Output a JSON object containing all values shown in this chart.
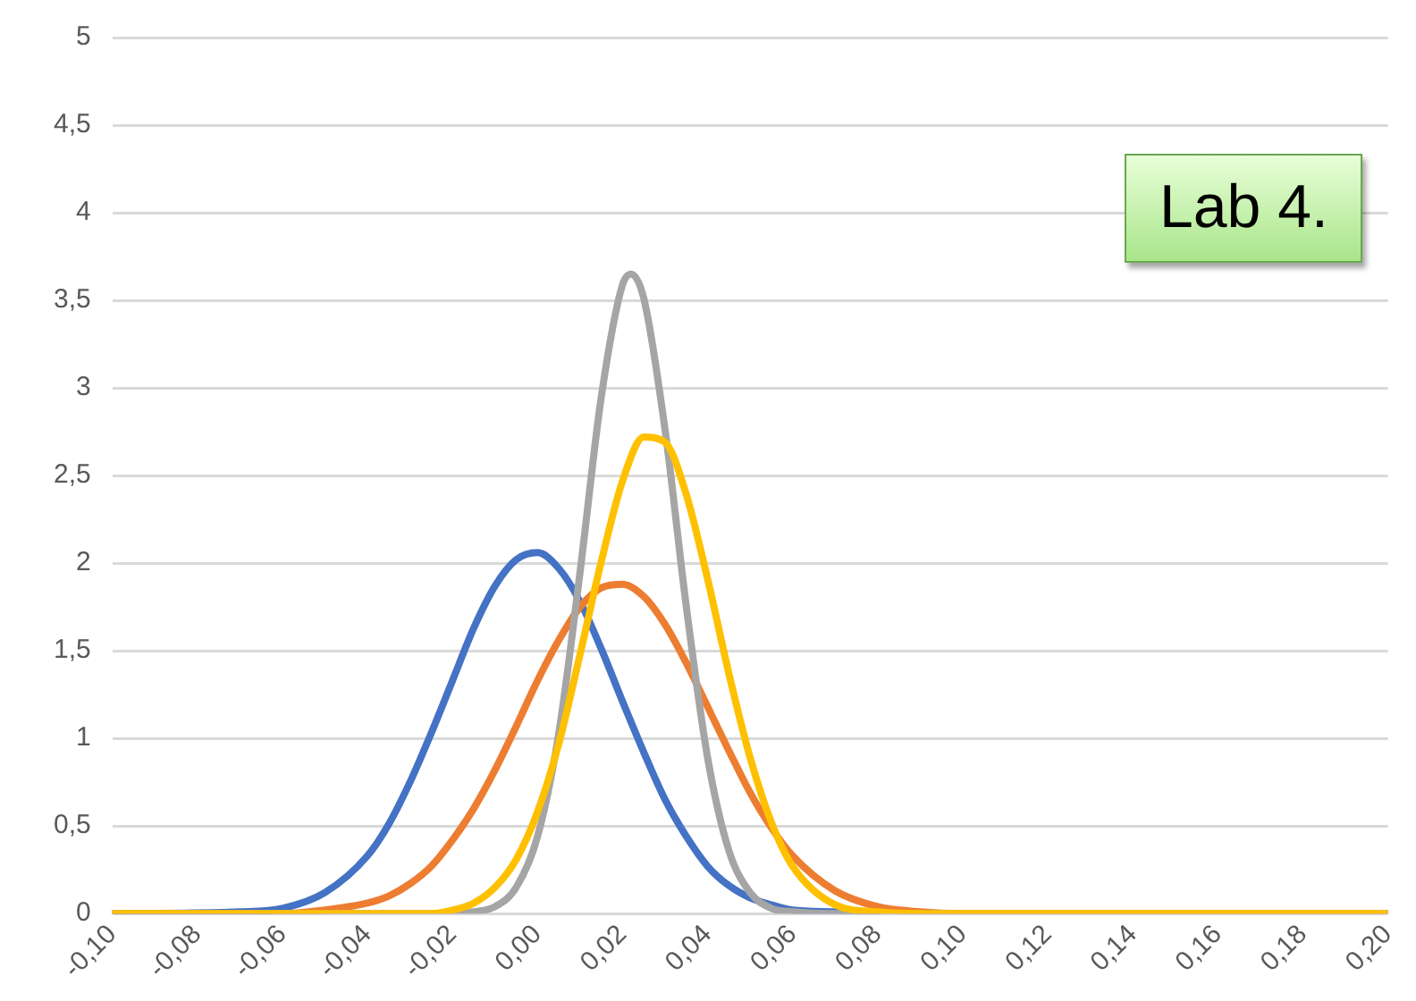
{
  "chart_data": {
    "type": "line",
    "x": [
      -0.1,
      -0.07,
      -0.06,
      -0.05,
      -0.04,
      -0.035,
      -0.03,
      -0.025,
      -0.02,
      -0.015,
      -0.01,
      -0.005,
      0,
      0.005,
      0.01,
      0.015,
      0.02,
      0.025,
      0.03,
      0.035,
      0.04,
      0.045,
      0.05,
      0.055,
      0.06,
      0.07,
      0.08,
      0.09,
      0.1,
      0.2
    ],
    "series": [
      {
        "color": "#4472c4",
        "values": [
          0,
          0.01,
          0.03,
          0.12,
          0.33,
          0.51,
          0.75,
          1.03,
          1.33,
          1.63,
          1.87,
          2.02,
          2.06,
          1.97,
          1.78,
          1.51,
          1.21,
          0.92,
          0.65,
          0.44,
          0.27,
          0.16,
          0.09,
          0.05,
          0.02,
          0.01,
          0,
          null,
          null,
          null
        ]
      },
      {
        "color": "#ed7d31",
        "values": [
          0,
          0,
          0,
          0.02,
          0.06,
          0.1,
          0.17,
          0.27,
          0.42,
          0.6,
          0.82,
          1.07,
          1.33,
          1.56,
          1.75,
          1.86,
          1.88,
          1.81,
          1.65,
          1.43,
          1.18,
          0.93,
          0.69,
          0.49,
          0.33,
          0.13,
          0.04,
          0.01,
          0,
          0
        ]
      },
      {
        "color": "#a5a5a5",
        "x": [
          -0.1,
          -0.02,
          -0.015,
          -0.01,
          -0.005,
          0,
          0.005,
          0.01,
          0.015,
          0.02,
          0.022,
          0.025,
          0.03,
          0.035,
          0.04,
          0.045,
          0.05,
          0.055,
          0.06,
          0.07,
          0.2
        ],
        "values": [
          0,
          0,
          0.01,
          0.04,
          0.15,
          0.44,
          1.03,
          1.95,
          2.95,
          3.59,
          3.65,
          3.51,
          2.76,
          1.75,
          0.89,
          0.36,
          0.12,
          0.03,
          0.01,
          0,
          0
        ]
      },
      {
        "color": "#ffc000",
        "values": [
          0,
          0,
          0,
          0,
          0,
          0,
          0,
          0,
          0.02,
          0.06,
          0.15,
          0.31,
          0.58,
          0.97,
          1.48,
          2.01,
          2.47,
          2.72,
          2.69,
          2.39,
          1.91,
          1.37,
          0.89,
          0.52,
          0.27,
          0.05,
          0.01,
          0,
          0,
          0
        ]
      }
    ],
    "xlim": [
      -0.1,
      0.2
    ],
    "xticks": [
      {
        "value": -0.1,
        "label": "-0,10"
      },
      {
        "value": -0.08,
        "label": "-0,08"
      },
      {
        "value": -0.06,
        "label": "-0,06"
      },
      {
        "value": -0.04,
        "label": "-0,04"
      },
      {
        "value": -0.02,
        "label": "-0,02"
      },
      {
        "value": 0,
        "label": "0,00"
      },
      {
        "value": 0.02,
        "label": "0,02"
      },
      {
        "value": 0.04,
        "label": "0,04"
      },
      {
        "value": 0.06,
        "label": "0,06"
      },
      {
        "value": 0.08,
        "label": "0,08"
      },
      {
        "value": 0.1,
        "label": "0,10"
      },
      {
        "value": 0.12,
        "label": "0,12"
      },
      {
        "value": 0.14,
        "label": "0,14"
      },
      {
        "value": 0.16,
        "label": "0,16"
      },
      {
        "value": 0.18,
        "label": "0,18"
      },
      {
        "value": 0.2,
        "label": "0,20"
      }
    ],
    "ylim": [
      0,
      5
    ],
    "yticks": [
      0,
      {
        "value": 0.5,
        "label": "0,5"
      },
      1,
      {
        "value": 1.5,
        "label": "1,5"
      },
      2,
      {
        "value": 2.5,
        "label": "2,5"
      },
      3,
      {
        "value": 3.5,
        "label": "3,5"
      },
      4,
      {
        "value": 4.5,
        "label": "4,5"
      },
      5
    ],
    "grid": "y",
    "legend": false,
    "marker": "none",
    "line_style": "solid",
    "annotations": [
      "Lab 4."
    ]
  }
}
